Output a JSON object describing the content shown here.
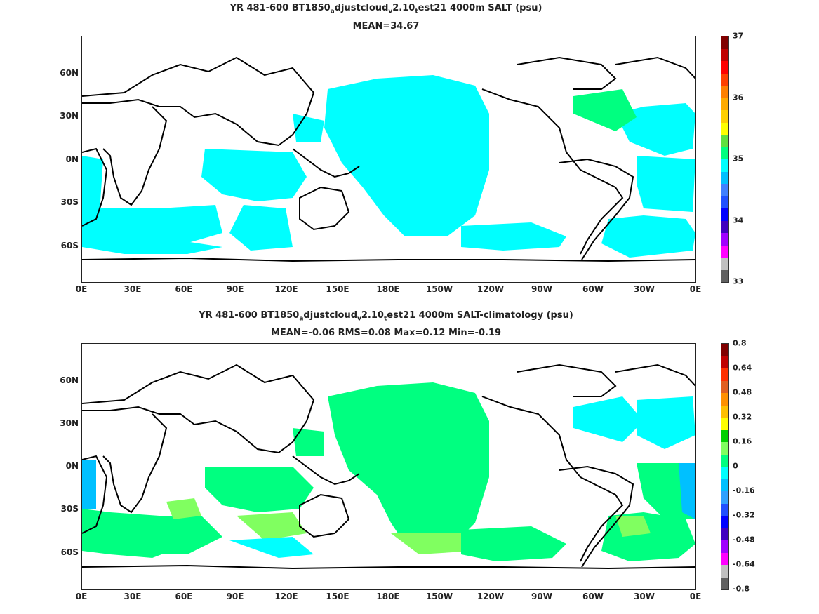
{
  "panel1": {
    "title_parts": [
      "YR 481-600 BT1850",
      "a",
      "djustcloud",
      "v",
      "2.10",
      "t",
      "est21 4000m SALT (psu)"
    ],
    "subtitle": "MEAN=34.67",
    "x_ticks": [
      "0E",
      "30E",
      "60E",
      "90E",
      "120E",
      "150E",
      "180E",
      "150W",
      "120W",
      "90W",
      "60W",
      "30W",
      "0E"
    ],
    "y_ticks": [
      "60N",
      "30N",
      "0N",
      "30S",
      "60S"
    ],
    "colorbar_ticks": [
      "37",
      "36",
      "35",
      "34",
      "33"
    ],
    "colorbar_colors": [
      "#800000",
      "#c00000",
      "#ff0000",
      "#ff4000",
      "#ff8000",
      "#ffaa00",
      "#ffd000",
      "#ffff00",
      "#60e040",
      "#00ff80",
      "#00ffff",
      "#00c0ff",
      "#4080ff",
      "#2050ff",
      "#0000ff",
      "#4000c0",
      "#a000ff",
      "#ff00ff",
      "#c0c0c0",
      "#606060"
    ]
  },
  "panel2": {
    "title_parts": [
      "YR 481-600 BT1850",
      "a",
      "djustcloud",
      "v",
      "2.10",
      "t",
      "est21 4000m SALT-climatology (psu)"
    ],
    "subtitle": "MEAN=-0.06   RMS=0.08   Max=0.12   Min=-0.19",
    "x_ticks": [
      "0E",
      "30E",
      "60E",
      "90E",
      "120E",
      "150E",
      "180E",
      "150W",
      "120W",
      "90W",
      "60W",
      "30W",
      "0E"
    ],
    "y_ticks": [
      "60N",
      "30N",
      "0N",
      "30S",
      "60S"
    ],
    "colorbar_ticks": [
      "0.8",
      "0.64",
      "0.48",
      "0.32",
      "0.16",
      "0",
      "-0.16",
      "-0.32",
      "-0.48",
      "-0.64",
      "-0.8"
    ],
    "colorbar_colors": [
      "#800000",
      "#c00000",
      "#ff3000",
      "#e06020",
      "#ff9000",
      "#ffc000",
      "#ffff00",
      "#00d000",
      "#80ff60",
      "#00ff80",
      "#00ffff",
      "#00c0ff",
      "#30a0ff",
      "#2050ff",
      "#0000ff",
      "#4000c0",
      "#a000ff",
      "#ff00ff",
      "#c0c0c0",
      "#606060"
    ]
  },
  "colors": {
    "salt_cyan": "#00ffff",
    "salt_green": "#00ff80",
    "anom_green": "#00ff80",
    "anom_lightgreen": "#80ff60",
    "anom_cyan": "#00ffff",
    "anom_blue": "#00c0ff"
  }
}
